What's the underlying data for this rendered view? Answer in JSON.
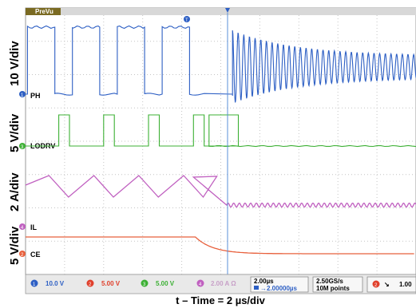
{
  "header": {
    "mode_label": "PreVu"
  },
  "chart_data": {
    "type": "line",
    "title": "",
    "xlabel": "t – Time = 2 µs/div",
    "time_unit": "µs",
    "time_per_div_us": 2,
    "x_range_us": [
      0,
      20
    ],
    "grid": true,
    "series": [
      {
        "name": "PH",
        "channel": 1,
        "color": "#2d5fc4",
        "ylabel": "10 V/div",
        "events_us": {
          "first_rise": 0.1,
          "switch_period": 2.3,
          "high_width": 1.4,
          "ringing_start": 10.6,
          "ringing_period": 0.29
        }
      },
      {
        "name": "LODRV",
        "channel": 3,
        "color": "#3cb034",
        "ylabel": "5 V/div",
        "events_us": {
          "first_pulse": 1.7,
          "switch_period": 2.3,
          "pulse_width": 0.55,
          "off_after": 9.4
        }
      },
      {
        "name": "IL",
        "channel": 4,
        "color": "#c060c0",
        "ylabel": "2 A/div",
        "events_us": {
          "first_peak": 1.2,
          "switch_period": 2.3,
          "decay_start": 8.6,
          "decay_end": 10.3
        }
      },
      {
        "name": "CE",
        "channel": 2,
        "color": "#e8603c",
        "ylabel": "5 V/div",
        "events_us": {
          "drop_start": 8.7,
          "drop_end": 10.3
        }
      }
    ],
    "status_bar": {
      "ch1": "10.0 V",
      "ch2": "5.00 V",
      "ch3": "5.00 V",
      "ch4": "2.00 A Ω",
      "timebase": "2.00µs",
      "trigger_offset": "→2.00000µs",
      "sample_rate": "2.50GS/s",
      "record_length": "10M points",
      "trigger_channel": "2",
      "trigger_slope": "↘",
      "trigger_level": "1.00"
    }
  }
}
